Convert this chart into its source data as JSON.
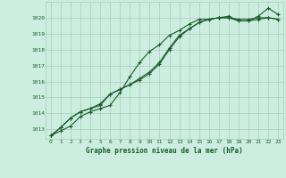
{
  "title": "Graphe pression niveau de la mer (hPa)",
  "bg_color": "#cceee0",
  "grid_color": "#aaccbb",
  "line_color": "#1a5c2a",
  "ylim": [
    1012.4,
    1021.0
  ],
  "xlim": [
    -0.5,
    23.5
  ],
  "yticks": [
    1013,
    1014,
    1015,
    1016,
    1017,
    1018,
    1019,
    1020
  ],
  "xticks": [
    0,
    1,
    2,
    3,
    4,
    5,
    6,
    7,
    8,
    9,
    10,
    11,
    12,
    13,
    14,
    15,
    16,
    17,
    18,
    19,
    20,
    21,
    22,
    23
  ],
  "series": [
    [
      1012.6,
      1012.9,
      1013.2,
      1013.8,
      1014.1,
      1014.3,
      1014.5,
      1015.3,
      1016.3,
      1017.2,
      1017.9,
      1018.3,
      1018.9,
      1019.2,
      1019.6,
      1019.9,
      1019.9,
      1020.0,
      1020.1,
      1019.8,
      1019.8,
      1020.1,
      1020.6,
      1020.2
    ],
    [
      1012.6,
      1013.1,
      1013.7,
      1014.1,
      1014.3,
      1014.5,
      1015.2,
      1015.5,
      1015.8,
      1016.1,
      1016.5,
      1017.1,
      1018.0,
      1018.8,
      1019.3,
      1019.7,
      1019.9,
      1020.0,
      1020.0,
      1019.8,
      1019.8,
      1019.9,
      1020.0,
      1019.9
    ],
    [
      1012.6,
      1013.1,
      1013.7,
      1014.1,
      1014.3,
      1014.6,
      1015.2,
      1015.5,
      1015.8,
      1016.2,
      1016.6,
      1017.2,
      1018.1,
      1018.9,
      1019.3,
      1019.7,
      1019.9,
      1020.0,
      1020.0,
      1019.9,
      1019.9,
      1020.0,
      1020.0,
      1019.9
    ]
  ]
}
